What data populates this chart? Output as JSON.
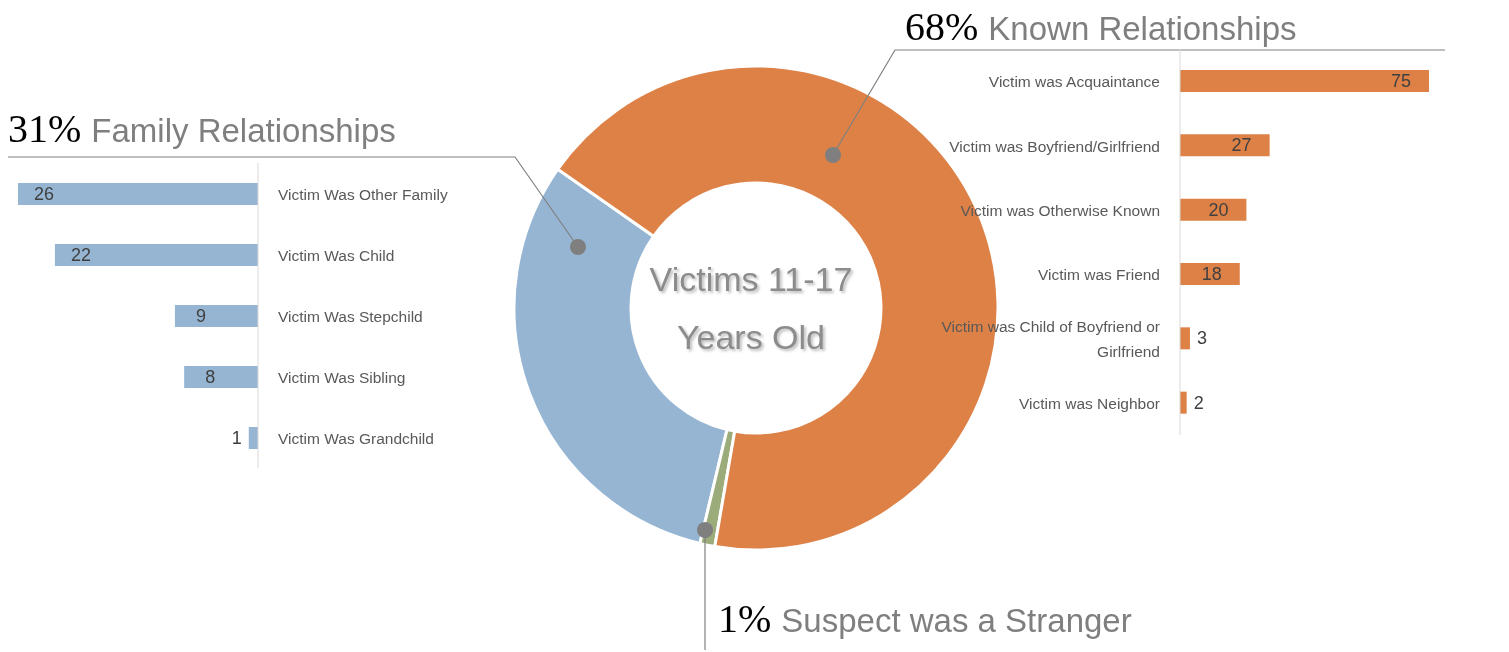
{
  "chart_data": [
    {
      "type": "donut",
      "title": "Victims 11-17 Years Old",
      "categories": [
        "Family Relationships",
        "Suspect was a Stranger",
        "Known Relationships"
      ],
      "values": [
        31,
        1,
        68
      ],
      "colors": [
        "#95b5d3",
        "#9bab7a",
        "#dd8146"
      ],
      "value_labels": [
        "31%",
        "1%",
        "68%"
      ]
    },
    {
      "type": "bar",
      "orientation": "horizontal",
      "categories": [
        "Victim Was Other Family",
        "Victim Was Child",
        "Victim Was Stepchild",
        "Victim Was Sibling",
        "Victim Was Grandchild"
      ],
      "values": [
        26,
        22,
        9,
        8,
        1
      ],
      "color": "#95b5d3",
      "xlim": [
        26,
        0
      ],
      "data_labels": true,
      "tick_labels": "y"
    },
    {
      "type": "bar",
      "orientation": "horizontal",
      "categories": [
        "Victim was Acquaintance",
        "Victim was Boyfriend/Girlfriend",
        "Victim was Otherwise Known",
        "Victim was Friend",
        "Victim was Child of Boyfriend or Girlfriend",
        "Victim was Neighbor"
      ],
      "values": [
        75,
        27,
        20,
        18,
        3,
        2
      ],
      "color": "#dd8146",
      "xlim": [
        0,
        75
      ],
      "data_labels": true,
      "tick_labels": "y"
    }
  ]
}
